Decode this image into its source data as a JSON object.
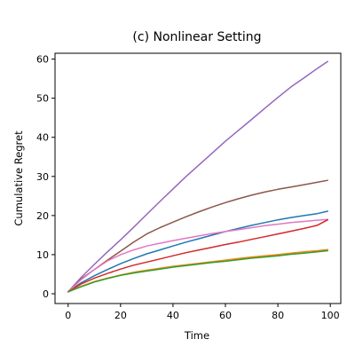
{
  "chart_data": {
    "type": "line",
    "title": "(c) Nonlinear Setting",
    "xlabel": "Time",
    "ylabel": "Cumulative Regret",
    "xlim": [
      -5,
      104
    ],
    "ylim": [
      -2.5,
      61.5
    ],
    "xticks": [
      0,
      20,
      40,
      60,
      80,
      100
    ],
    "yticks": [
      0,
      10,
      20,
      30,
      40,
      50,
      60
    ],
    "grid": false,
    "x": [
      0,
      5,
      10,
      15,
      20,
      25,
      30,
      35,
      40,
      45,
      50,
      55,
      60,
      65,
      70,
      75,
      80,
      85,
      90,
      95,
      99
    ],
    "series": [
      {
        "color": "#9467bd",
        "values": [
          0.5,
          4.2,
          7.5,
          10.7,
          13.8,
          17.0,
          20.3,
          23.6,
          26.8,
          30.0,
          33.0,
          36.0,
          39.0,
          41.8,
          44.6,
          47.4,
          50.2,
          52.9,
          55.2,
          57.6,
          59.4
        ]
      },
      {
        "color": "#8c564b",
        "values": [
          0.5,
          3.8,
          6.2,
          8.6,
          10.9,
          13.2,
          15.3,
          16.9,
          18.3,
          19.7,
          21.0,
          22.2,
          23.3,
          24.3,
          25.2,
          26.0,
          26.7,
          27.3,
          27.9,
          28.5,
          29.0
        ]
      },
      {
        "color": "#1f77b4",
        "values": [
          0.5,
          2.8,
          4.6,
          6.2,
          7.7,
          9.0,
          10.2,
          11.2,
          12.2,
          13.2,
          14.1,
          15.0,
          15.9,
          16.7,
          17.5,
          18.2,
          18.9,
          19.5,
          20.0,
          20.5,
          21.1
        ]
      },
      {
        "color": "#e377c2",
        "values": [
          0.5,
          3.6,
          6.2,
          8.4,
          10.0,
          11.2,
          12.2,
          12.9,
          13.6,
          14.2,
          14.8,
          15.4,
          15.9,
          16.4,
          16.9,
          17.4,
          17.8,
          18.2,
          18.5,
          18.8,
          19.0
        ]
      },
      {
        "color": "#d62728",
        "values": [
          0.5,
          2.5,
          4.0,
          5.2,
          6.3,
          7.3,
          8.1,
          8.9,
          9.7,
          10.5,
          11.2,
          11.9,
          12.6,
          13.2,
          13.9,
          14.6,
          15.3,
          16.0,
          16.7,
          17.5,
          18.9
        ]
      },
      {
        "color": "#ff7f0e",
        "values": [
          0.5,
          1.9,
          3.1,
          4.0,
          4.8,
          5.5,
          6.0,
          6.5,
          7.0,
          7.4,
          7.8,
          8.2,
          8.6,
          9.0,
          9.4,
          9.7,
          10.0,
          10.4,
          10.7,
          11.0,
          11.3
        ]
      },
      {
        "color": "#2ca02c",
        "values": [
          0.5,
          1.8,
          3.0,
          3.9,
          4.7,
          5.3,
          5.8,
          6.3,
          6.8,
          7.2,
          7.6,
          8.0,
          8.3,
          8.7,
          9.1,
          9.4,
          9.7,
          10.1,
          10.4,
          10.7,
          11.0
        ]
      }
    ]
  }
}
